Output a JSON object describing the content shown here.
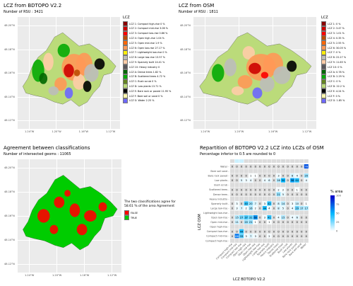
{
  "panel1": {
    "title": "LCZ from   BDTOPO V2.2",
    "subtitle": "Number of RSU : 3421",
    "legend_title": "LCZ",
    "legend": [
      {
        "label": "LCZ 1: Compact high-rise 0 %",
        "color": "#8b0101"
      },
      {
        "label": "LCZ 2: Compact mid-rise 3.06 %",
        "color": "#cc0200"
      },
      {
        "label": "LCZ 3: Compact low-rise 0.86 %",
        "color": "#fc0001"
      },
      {
        "label": "LCZ 4: Open high-rise 1.04 %",
        "color": "#be4c03"
      },
      {
        "label": "LCZ 5: Open mid-rise 1.9 %",
        "color": "#ff6602"
      },
      {
        "label": "LCZ 6: Open low-rise 27.17 %",
        "color": "#ff9856"
      },
      {
        "label": "LCZ 7: Lightweight low-rise 0 %",
        "color": "#fbed08"
      },
      {
        "label": "LCZ 8: Large low-rise 13.57 %",
        "color": "#bcbcba"
      },
      {
        "label": "LCZ 9: Sparsely built 14.41 %",
        "color": "#ffcca7"
      },
      {
        "label": "LCZ 10: Heavy industry 0",
        "color": "#57555a"
      },
      {
        "label": "LCZ A: Dense trees 1.82 %",
        "color": "#006700"
      },
      {
        "label": "LCZ B: Scattered trees 4.72 %",
        "color": "#05aa05"
      },
      {
        "label": "LCZ C: Bush scrub 0 %",
        "color": "#648423"
      },
      {
        "label": "LCZ D: Low plants 13.71 %",
        "color": "#bbdb7a"
      },
      {
        "label": "LCZ E: Bare rock or paved 11.95 %",
        "color": "#010101"
      },
      {
        "label": "LCZ F: Bare soil or sand 0 %",
        "color": "#fdf6ae"
      },
      {
        "label": "LCZ G: Water 2.25 %",
        "color": "#6d67fd"
      }
    ],
    "lat_ticks": [
      "48.20°N",
      "48.18°N",
      "48.16°N",
      "48.14°N",
      "48.12°N"
    ],
    "lon_ticks": [
      "1.24°W",
      "1.20°W",
      "1.16°W",
      "1.12°W"
    ]
  },
  "panel2": {
    "title": "LCZ from   OSM",
    "subtitle": "Number of RSU : 1811",
    "legend_title": "LCZ",
    "legend": [
      {
        "label": "LCZ 1: 0 %",
        "color": "#8b0101"
      },
      {
        "label": "LCZ 2: 3.47 %",
        "color": "#cc0200"
      },
      {
        "label": "LCZ 3: 1.01 %",
        "color": "#fc0001"
      },
      {
        "label": "LCZ 4: 0.35 %",
        "color": "#be4c03"
      },
      {
        "label": "LCZ 5: 2.55 %",
        "color": "#ff6602"
      },
      {
        "label": "LCZ 6: 30.05 %",
        "color": "#ff9856"
      },
      {
        "label": "LCZ 7: 0 %",
        "color": "#fbed08"
      },
      {
        "label": "LCZ 8: 22.27 %",
        "color": "#bcbcba"
      },
      {
        "label": "LCZ 9: 11.65 %",
        "color": "#ffcca7"
      },
      {
        "label": "LCZ 10: 0 %",
        "color": "#57555a"
      },
      {
        "label": "LCZ A: 0.78 %",
        "color": "#006700"
      },
      {
        "label": "LCZ B: 2.29 %",
        "color": "#05aa05"
      },
      {
        "label": "LCZ C: 0 %",
        "color": "#648423"
      },
      {
        "label": "LCZ D: 22.2 %",
        "color": "#bbdb7a"
      },
      {
        "label": "LCZ E: 4.24 %",
        "color": "#010101"
      },
      {
        "label": "LCZ F: 0 %",
        "color": "#fdf6ae"
      },
      {
        "label": "LCZ G: 1.85 %",
        "color": "#6d67fd"
      }
    ],
    "lat_ticks": [
      "48.20°N",
      "48.18°N",
      "48.16°N",
      "48.14°N",
      "48.12°N"
    ],
    "lon_ticks": [
      "1.24°W",
      "1.20°W",
      "1.16°W",
      "1.12°W"
    ]
  },
  "panel3": {
    "title": "Agreement between classifications",
    "subtitle": "Number of intersected geoms : 11065",
    "note_line1": "The two classifications agree for",
    "note_line2": "58.61 % of the area Agreement",
    "legend": [
      {
        "label": "FALSE",
        "color": "#ff0000"
      },
      {
        "label": "TRUE",
        "color": "#00cc00"
      }
    ],
    "lat_ticks": [
      "48.20°N",
      "48.18°N",
      "48.16°N",
      "48.14°N",
      "48.12°N"
    ],
    "lon_ticks": [
      "1.24°W",
      "1.20°W",
      "1.16°W",
      "1.12°W"
    ]
  },
  "panel4": {
    "title": "Repartition of  BDTOPO V2.2  LCZ into LCZs of  OSM",
    "subtitle": "Percentage inferior to 0.5 are rounded to 0",
    "xlabel": "LCZ  BDTOPO V2.2",
    "ylabel": "LCZ  OSM",
    "legend_title": "% area",
    "legend_ticks": [
      "100",
      "75",
      "50",
      "25",
      "0"
    ],
    "categories": [
      "Compact high-rise",
      "Compact mid-rise",
      "Compact low-rise",
      "Open high-rise",
      "Open mid-rise",
      "Open low-rise",
      "Lightweight low-rise",
      "Large low-rise",
      "Sparsely built",
      "Heavy industry",
      "Dense trees",
      "Scattered trees",
      "Bush scrub",
      "Low plants",
      "Bare rock paved",
      "Bare soil sand",
      "Water"
    ],
    "rows_top_to_bottom": [
      "Water",
      "Bare soil sand",
      "Bare rock paved",
      "Low plants",
      "Bush scrub",
      "Scattered trees",
      "Dense trees",
      "Heavy industry",
      "Sparsely built",
      "Large low-rise",
      "Lightweight low-rise",
      "Open low-rise",
      "Open mid-rise",
      "Open high-rise",
      "Compact low-rise",
      "Compact mid-rise",
      "Compact high-rise"
    ]
  },
  "chart_data": {
    "type": "heatmap",
    "title": "Repartition of  BDTOPO V2.2  LCZ into LCZs of  OSM",
    "xlabel": "LCZ  BDTOPO V2.2",
    "ylabel": "LCZ  OSM",
    "x": [
      "Compact high-rise",
      "Compact mid-rise",
      "Compact low-rise",
      "Open high-rise",
      "Open mid-rise",
      "Open low-rise",
      "Lightweight low-rise",
      "Large low-rise",
      "Sparsely built",
      "Heavy industry",
      "Dense trees",
      "Scattered trees",
      "Bush scrub",
      "Low plants",
      "Bare rock paved",
      "Bare soil sand",
      "Water"
    ],
    "y": [
      "Water",
      "Bare soil sand",
      "Bare rock paved",
      "Low plants",
      "Bush scrub",
      "Scattered trees",
      "Dense trees",
      "Heavy industry",
      "Sparsely built",
      "Large low-rise",
      "Lightweight low-rise",
      "Open low-rise",
      "Open mid-rise",
      "Open high-rise",
      "Compact low-rise",
      "Compact mid-rise",
      "Compact high-rise"
    ],
    "values": [
      [
        0,
        0,
        0,
        0,
        0,
        0,
        0,
        0,
        0,
        0,
        0,
        0,
        0,
        0,
        0,
        0,
        78
      ],
      [
        0,
        0,
        0,
        0,
        0,
        0,
        0,
        0,
        0,
        0,
        0,
        0,
        0,
        0,
        0,
        0,
        0
      ],
      [
        0,
        0,
        0,
        0,
        1,
        1,
        0,
        0,
        0,
        0,
        3,
        0,
        0,
        8,
        4,
        0,
        20
      ],
      [
        0,
        0,
        5,
        3,
        4,
        0,
        0,
        4,
        6,
        0,
        16,
        50,
        0,
        56,
        44,
        0,
        4
      ],
      [
        0,
        0,
        0,
        0,
        0,
        0,
        0,
        0,
        0,
        0,
        0,
        0,
        0,
        0,
        0,
        0,
        0
      ],
      [
        0,
        0,
        0,
        0,
        0,
        0,
        0,
        0,
        0,
        0,
        2,
        2,
        0,
        0,
        1,
        0,
        0
      ],
      [
        0,
        0,
        0,
        0,
        0,
        0,
        0,
        0,
        0,
        0,
        21,
        5,
        0,
        0,
        0,
        0,
        0
      ],
      [
        0,
        0,
        0,
        0,
        0,
        0,
        0,
        0,
        0,
        0,
        0,
        0,
        0,
        0,
        0,
        0,
        0
      ],
      [
        0,
        3,
        0,
        40,
        20,
        7,
        0,
        3,
        42,
        0,
        8,
        14,
        0,
        3,
        10,
        0,
        1
      ],
      [
        0,
        3,
        7,
        2,
        16,
        2,
        0,
        44,
        4,
        0,
        8,
        5,
        0,
        4,
        29,
        17,
        17
      ],
      [
        0,
        0,
        0,
        0,
        0,
        0,
        0,
        0,
        0,
        0,
        0,
        0,
        0,
        0,
        0,
        0,
        0
      ],
      [
        0,
        15,
        27,
        37,
        31,
        60,
        0,
        3,
        41,
        0,
        4,
        15,
        0,
        4,
        6,
        0,
        0
      ],
      [
        0,
        11,
        0,
        20,
        21,
        1,
        0,
        0,
        1,
        0,
        0,
        0,
        0,
        0,
        0,
        0,
        0
      ],
      [
        0,
        0,
        0,
        0,
        0,
        0,
        0,
        0,
        0,
        0,
        0,
        0,
        0,
        0,
        0,
        0,
        0
      ],
      [
        0,
        0,
        44,
        0,
        0,
        0,
        0,
        0,
        0,
        0,
        0,
        0,
        0,
        0,
        0,
        0,
        0
      ],
      [
        0,
        68,
        33,
        3,
        7,
        3,
        0,
        0,
        2,
        0,
        0,
        0,
        0,
        0,
        0,
        0,
        0
      ],
      [
        0,
        0,
        0,
        0,
        0,
        0,
        0,
        0,
        0,
        0,
        0,
        0,
        0,
        0,
        0,
        0,
        0
      ]
    ],
    "top_bar_values": [
      0,
      1,
      1,
      0,
      0,
      0,
      0,
      0,
      0,
      0,
      0,
      0,
      0,
      0,
      0,
      0,
      0
    ],
    "colorscale": [
      "#ffffff",
      "#00b7ff",
      "#0000c8"
    ],
    "zlim": [
      0,
      100
    ]
  }
}
